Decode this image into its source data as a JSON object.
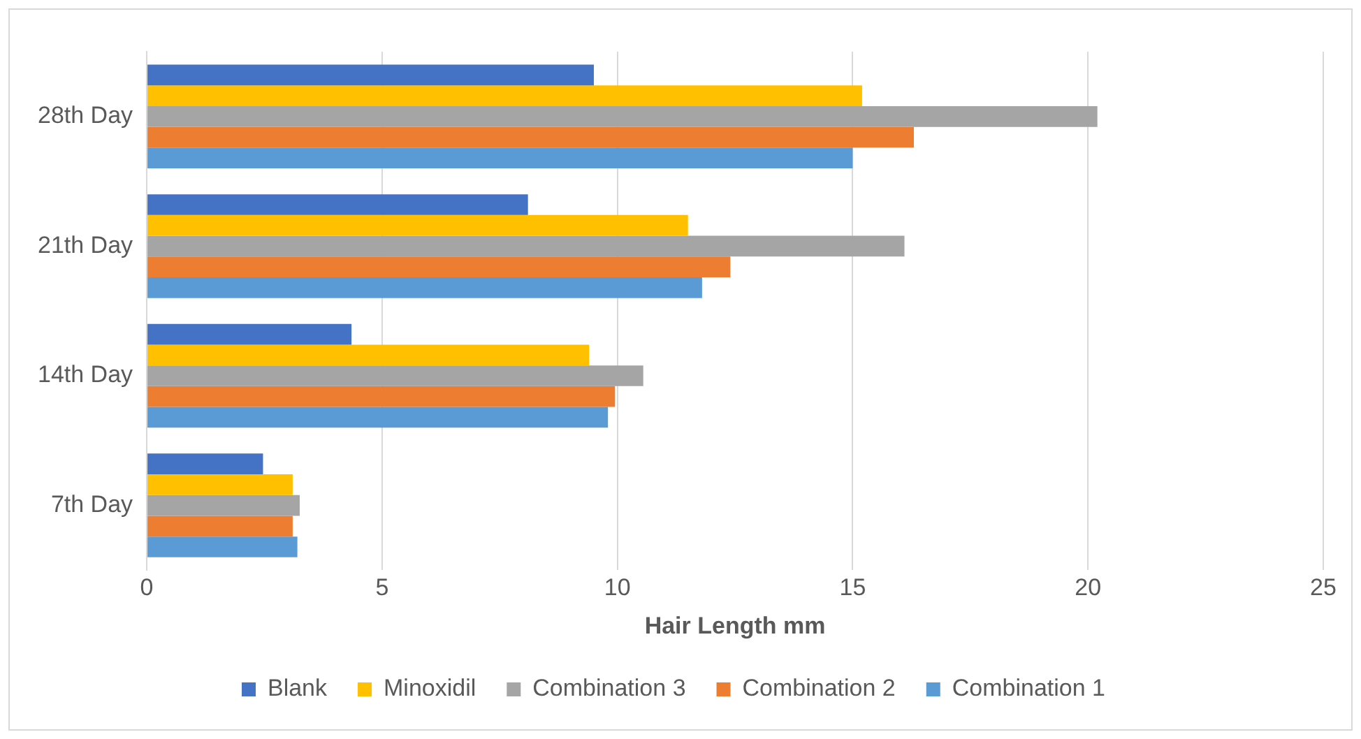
{
  "chart_data": {
    "type": "bar",
    "orientation": "horizontal",
    "xlabel": "Hair Length mm",
    "categories": [
      "28th Day",
      "21th Day",
      "14th Day",
      "7th Day"
    ],
    "series": [
      {
        "name": "Blank",
        "color": "#4472c4",
        "values": [
          9.5,
          8.1,
          4.35,
          2.47
        ]
      },
      {
        "name": "Minoxidil",
        "color": "#ffc000",
        "values": [
          15.2,
          11.5,
          9.4,
          3.1
        ]
      },
      {
        "name": "Combination 3",
        "color": "#a5a5a5",
        "values": [
          20.2,
          16.1,
          10.55,
          3.25
        ]
      },
      {
        "name": "Combination 2",
        "color": "#ed7d31",
        "values": [
          16.3,
          12.4,
          9.95,
          3.1
        ]
      },
      {
        "name": "Combination 1",
        "color": "#5b9bd5",
        "values": [
          15.0,
          11.8,
          9.8,
          3.2
        ]
      }
    ],
    "xlim": [
      0,
      25
    ],
    "xticks": [
      0,
      5,
      10,
      15,
      20,
      25
    ],
    "grid": "x",
    "legend": "bottom"
  }
}
